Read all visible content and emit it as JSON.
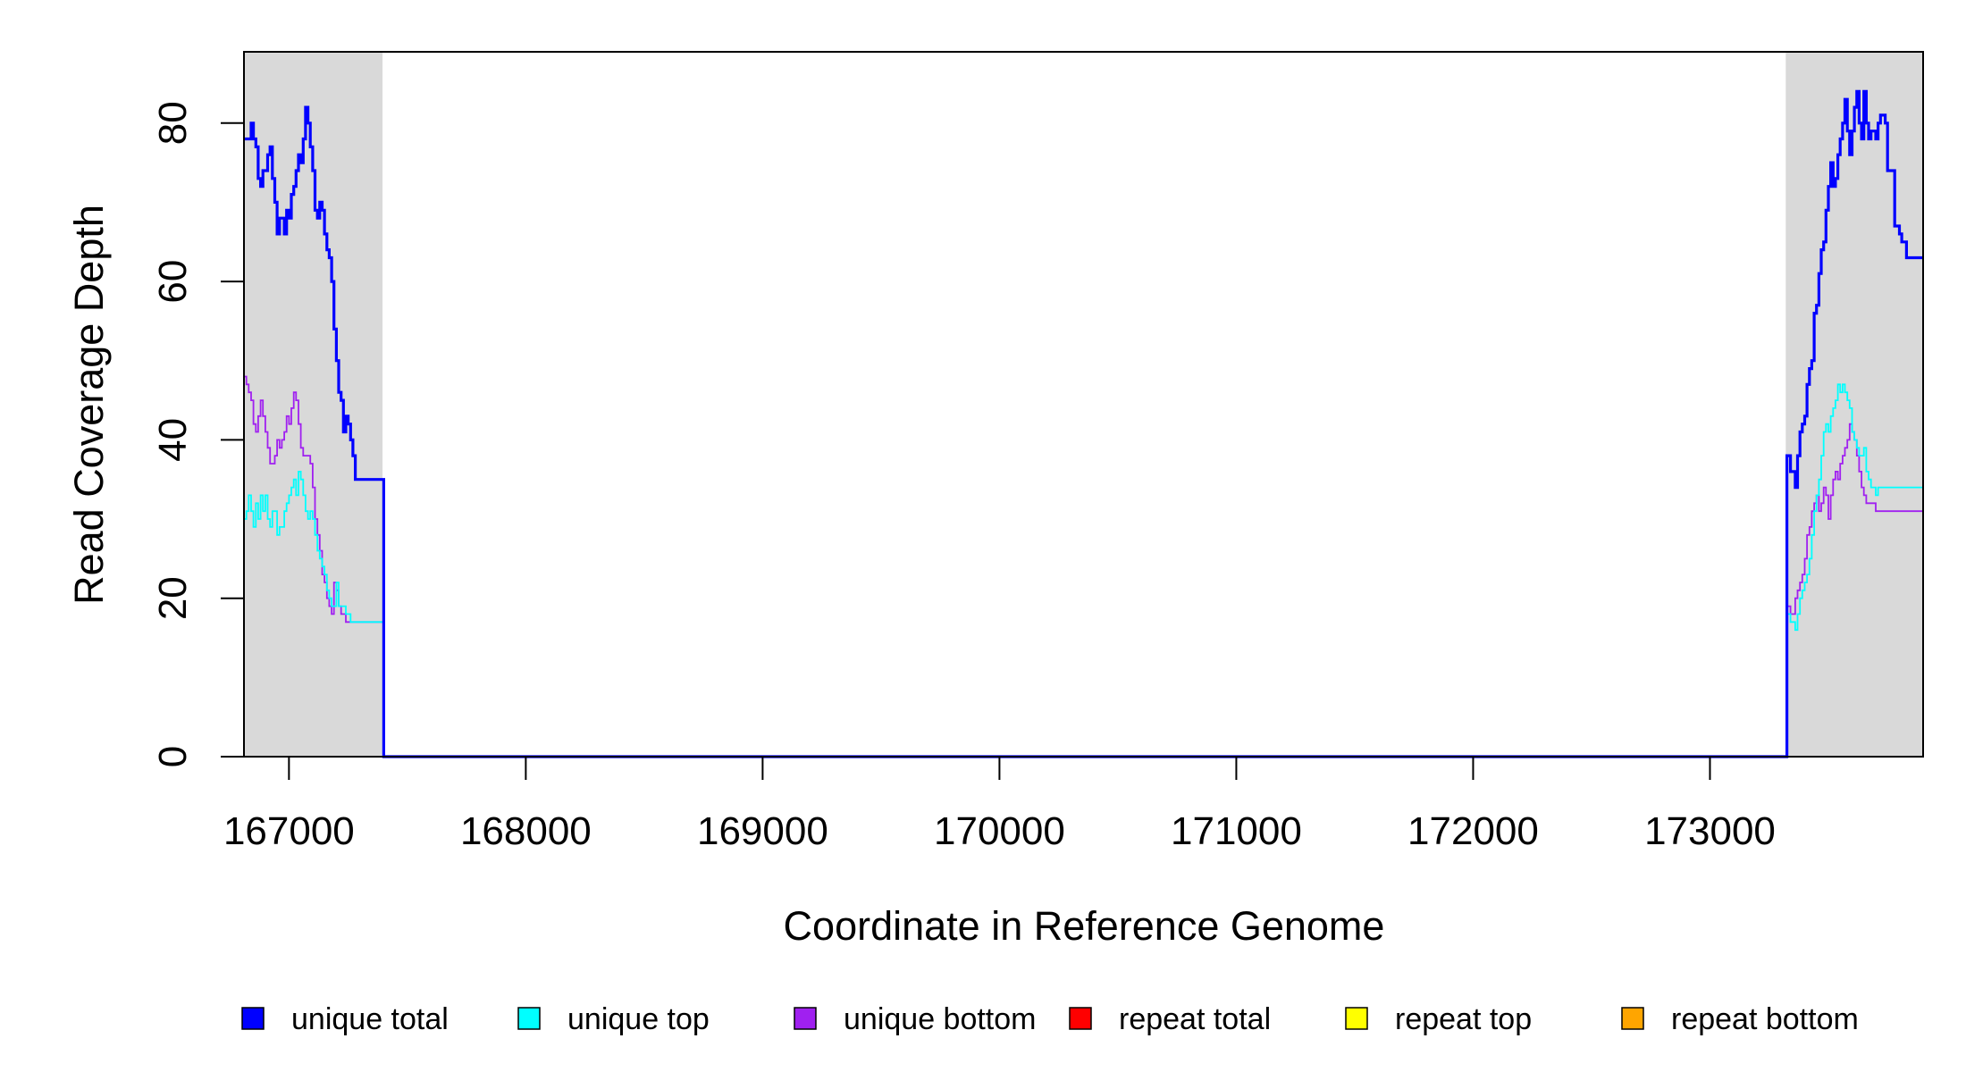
{
  "chart_data": {
    "type": "line",
    "title": "",
    "xlabel": "Coordinate in Reference Genome",
    "ylabel": "Read Coverage Depth",
    "xlim": [
      166810,
      173900
    ],
    "ylim": [
      0,
      89
    ],
    "x_ticks": [
      167000,
      168000,
      169000,
      170000,
      171000,
      172000,
      173000
    ],
    "y_ticks": [
      0,
      20,
      40,
      60,
      80
    ],
    "grid": false,
    "shaded_regions": [
      {
        "x_start": 166810,
        "x_end": 167395,
        "color": "#d9d9d9"
      },
      {
        "x_start": 173320,
        "x_end": 173900,
        "color": "#d9d9d9"
      }
    ],
    "series": [
      {
        "name": "unique total",
        "color": "#0000ff",
        "points": [
          [
            166810,
            78
          ],
          [
            166830,
            78
          ],
          [
            166840,
            80
          ],
          [
            166850,
            78
          ],
          [
            166860,
            77
          ],
          [
            166870,
            73
          ],
          [
            166880,
            72
          ],
          [
            166890,
            74
          ],
          [
            166900,
            74
          ],
          [
            166910,
            76
          ],
          [
            166920,
            77
          ],
          [
            166930,
            73
          ],
          [
            166940,
            70
          ],
          [
            166950,
            66
          ],
          [
            166960,
            68
          ],
          [
            166970,
            68
          ],
          [
            166980,
            66
          ],
          [
            166990,
            69
          ],
          [
            167000,
            68
          ],
          [
            167010,
            71
          ],
          [
            167020,
            72
          ],
          [
            167030,
            74
          ],
          [
            167040,
            76
          ],
          [
            167050,
            75
          ],
          [
            167060,
            78
          ],
          [
            167070,
            82
          ],
          [
            167080,
            80
          ],
          [
            167090,
            77
          ],
          [
            167100,
            74
          ],
          [
            167110,
            69
          ],
          [
            167120,
            68
          ],
          [
            167130,
            70
          ],
          [
            167140,
            69
          ],
          [
            167150,
            66
          ],
          [
            167160,
            64
          ],
          [
            167170,
            63
          ],
          [
            167180,
            60
          ],
          [
            167190,
            54
          ],
          [
            167200,
            50
          ],
          [
            167210,
            46
          ],
          [
            167220,
            45
          ],
          [
            167230,
            41
          ],
          [
            167240,
            43
          ],
          [
            167250,
            42
          ],
          [
            167260,
            40
          ],
          [
            167270,
            38
          ],
          [
            167280,
            35
          ],
          [
            167395,
            35
          ],
          [
            167400,
            0
          ],
          [
            173320,
            0
          ],
          [
            173325,
            38
          ],
          [
            173340,
            36
          ],
          [
            173360,
            34
          ],
          [
            173370,
            38
          ],
          [
            173380,
            41
          ],
          [
            173390,
            42
          ],
          [
            173400,
            43
          ],
          [
            173410,
            47
          ],
          [
            173420,
            49
          ],
          [
            173430,
            50
          ],
          [
            173440,
            56
          ],
          [
            173450,
            57
          ],
          [
            173460,
            61
          ],
          [
            173470,
            64
          ],
          [
            173480,
            65
          ],
          [
            173490,
            69
          ],
          [
            173500,
            72
          ],
          [
            173510,
            75
          ],
          [
            173520,
            72
          ],
          [
            173530,
            73
          ],
          [
            173540,
            76
          ],
          [
            173550,
            78
          ],
          [
            173560,
            80
          ],
          [
            173570,
            83
          ],
          [
            173580,
            79
          ],
          [
            173590,
            76
          ],
          [
            173600,
            79
          ],
          [
            173610,
            82
          ],
          [
            173620,
            84
          ],
          [
            173630,
            80
          ],
          [
            173640,
            78
          ],
          [
            173650,
            84
          ],
          [
            173660,
            80
          ],
          [
            173670,
            78
          ],
          [
            173680,
            79
          ],
          [
            173690,
            79
          ],
          [
            173700,
            78
          ],
          [
            173710,
            80
          ],
          [
            173720,
            81
          ],
          [
            173740,
            80
          ],
          [
            173750,
            74
          ],
          [
            173780,
            67
          ],
          [
            173800,
            66
          ],
          [
            173810,
            65
          ],
          [
            173830,
            63
          ],
          [
            173900,
            63
          ]
        ]
      },
      {
        "name": "unique top",
        "color": "#00ffff",
        "points": [
          [
            166810,
            30
          ],
          [
            166820,
            31
          ],
          [
            166830,
            33
          ],
          [
            166840,
            31
          ],
          [
            166850,
            29
          ],
          [
            166860,
            32
          ],
          [
            166870,
            30
          ],
          [
            166880,
            33
          ],
          [
            166890,
            31
          ],
          [
            166900,
            33
          ],
          [
            166910,
            30
          ],
          [
            166920,
            29
          ],
          [
            166930,
            31
          ],
          [
            166940,
            31
          ],
          [
            166950,
            28
          ],
          [
            166960,
            29
          ],
          [
            166970,
            29
          ],
          [
            166980,
            31
          ],
          [
            166990,
            32
          ],
          [
            167000,
            33
          ],
          [
            167010,
            34
          ],
          [
            167020,
            35
          ],
          [
            167030,
            33
          ],
          [
            167040,
            36
          ],
          [
            167050,
            35
          ],
          [
            167060,
            33
          ],
          [
            167070,
            31
          ],
          [
            167080,
            30
          ],
          [
            167090,
            31
          ],
          [
            167100,
            30
          ],
          [
            167110,
            28
          ],
          [
            167120,
            26
          ],
          [
            167130,
            25
          ],
          [
            167140,
            24
          ],
          [
            167150,
            23
          ],
          [
            167160,
            21
          ],
          [
            167170,
            20
          ],
          [
            167180,
            19
          ],
          [
            167190,
            19
          ],
          [
            167200,
            22
          ],
          [
            167210,
            19
          ],
          [
            167220,
            19
          ],
          [
            167240,
            18
          ],
          [
            167260,
            17
          ],
          [
            167395,
            17
          ],
          [
            167400,
            0
          ],
          [
            173320,
            0
          ],
          [
            173325,
            18
          ],
          [
            173340,
            17
          ],
          [
            173360,
            16
          ],
          [
            173370,
            18
          ],
          [
            173380,
            20
          ],
          [
            173390,
            21
          ],
          [
            173400,
            22
          ],
          [
            173410,
            23
          ],
          [
            173420,
            25
          ],
          [
            173430,
            28
          ],
          [
            173440,
            31
          ],
          [
            173450,
            33
          ],
          [
            173460,
            35
          ],
          [
            173470,
            38
          ],
          [
            173480,
            41
          ],
          [
            173490,
            42
          ],
          [
            173500,
            41
          ],
          [
            173510,
            43
          ],
          [
            173520,
            44
          ],
          [
            173530,
            45
          ],
          [
            173540,
            47
          ],
          [
            173550,
            46
          ],
          [
            173560,
            47
          ],
          [
            173570,
            46
          ],
          [
            173580,
            45
          ],
          [
            173590,
            44
          ],
          [
            173600,
            41
          ],
          [
            173610,
            40
          ],
          [
            173620,
            39
          ],
          [
            173630,
            38
          ],
          [
            173640,
            38
          ],
          [
            173650,
            39
          ],
          [
            173660,
            36
          ],
          [
            173670,
            35
          ],
          [
            173680,
            34
          ],
          [
            173690,
            34
          ],
          [
            173700,
            33
          ],
          [
            173710,
            34
          ],
          [
            173900,
            34
          ]
        ]
      },
      {
        "name": "unique bottom",
        "color": "#a020f0",
        "points": [
          [
            166810,
            48
          ],
          [
            166820,
            47
          ],
          [
            166830,
            46
          ],
          [
            166840,
            45
          ],
          [
            166850,
            42
          ],
          [
            166860,
            41
          ],
          [
            166870,
            43
          ],
          [
            166880,
            45
          ],
          [
            166890,
            43
          ],
          [
            166900,
            41
          ],
          [
            166910,
            39
          ],
          [
            166920,
            37
          ],
          [
            166930,
            37
          ],
          [
            166940,
            38
          ],
          [
            166950,
            40
          ],
          [
            166960,
            39
          ],
          [
            166970,
            40
          ],
          [
            166980,
            41
          ],
          [
            166990,
            43
          ],
          [
            167000,
            42
          ],
          [
            167010,
            44
          ],
          [
            167020,
            46
          ],
          [
            167030,
            45
          ],
          [
            167040,
            42
          ],
          [
            167050,
            39
          ],
          [
            167060,
            38
          ],
          [
            167070,
            38
          ],
          [
            167080,
            38
          ],
          [
            167090,
            37
          ],
          [
            167100,
            34
          ],
          [
            167110,
            30
          ],
          [
            167120,
            28
          ],
          [
            167130,
            26
          ],
          [
            167140,
            23
          ],
          [
            167150,
            22
          ],
          [
            167160,
            20
          ],
          [
            167170,
            19
          ],
          [
            167180,
            18
          ],
          [
            167190,
            22
          ],
          [
            167200,
            21
          ],
          [
            167210,
            19
          ],
          [
            167220,
            18
          ],
          [
            167240,
            17
          ],
          [
            167395,
            17
          ],
          [
            167400,
            0
          ],
          [
            173320,
            0
          ],
          [
            173325,
            19
          ],
          [
            173340,
            18
          ],
          [
            173360,
            20
          ],
          [
            173370,
            21
          ],
          [
            173380,
            22
          ],
          [
            173390,
            23
          ],
          [
            173400,
            25
          ],
          [
            173410,
            28
          ],
          [
            173420,
            29
          ],
          [
            173430,
            31
          ],
          [
            173440,
            32
          ],
          [
            173450,
            33
          ],
          [
            173460,
            31
          ],
          [
            173470,
            32
          ],
          [
            173480,
            34
          ],
          [
            173490,
            33
          ],
          [
            173500,
            30
          ],
          [
            173510,
            33
          ],
          [
            173520,
            35
          ],
          [
            173530,
            36
          ],
          [
            173540,
            35
          ],
          [
            173550,
            37
          ],
          [
            173560,
            38
          ],
          [
            173570,
            39
          ],
          [
            173580,
            40
          ],
          [
            173590,
            42
          ],
          [
            173600,
            41
          ],
          [
            173610,
            40
          ],
          [
            173620,
            38
          ],
          [
            173630,
            36
          ],
          [
            173640,
            34
          ],
          [
            173650,
            33
          ],
          [
            173660,
            32
          ],
          [
            173700,
            31
          ],
          [
            173900,
            31
          ]
        ]
      },
      {
        "name": "repeat total",
        "color": "#ff0000",
        "points": [
          [
            166810,
            0
          ],
          [
            173900,
            0
          ]
        ]
      },
      {
        "name": "repeat top",
        "color": "#ffff00",
        "points": [
          [
            166810,
            0
          ],
          [
            173900,
            0
          ]
        ]
      },
      {
        "name": "repeat bottom",
        "color": "#ffa500",
        "points": [
          [
            166810,
            0
          ],
          [
            173900,
            0
          ]
        ]
      }
    ],
    "legend": {
      "placement": "bottom",
      "entries": [
        {
          "label": "unique total",
          "color": "#0000ff"
        },
        {
          "label": "unique top",
          "color": "#00ffff"
        },
        {
          "label": "unique bottom",
          "color": "#a020f0"
        },
        {
          "label": "repeat total",
          "color": "#ff0000"
        },
        {
          "label": "repeat top",
          "color": "#ffff00"
        },
        {
          "label": "repeat bottom",
          "color": "#ffa500"
        }
      ]
    }
  }
}
